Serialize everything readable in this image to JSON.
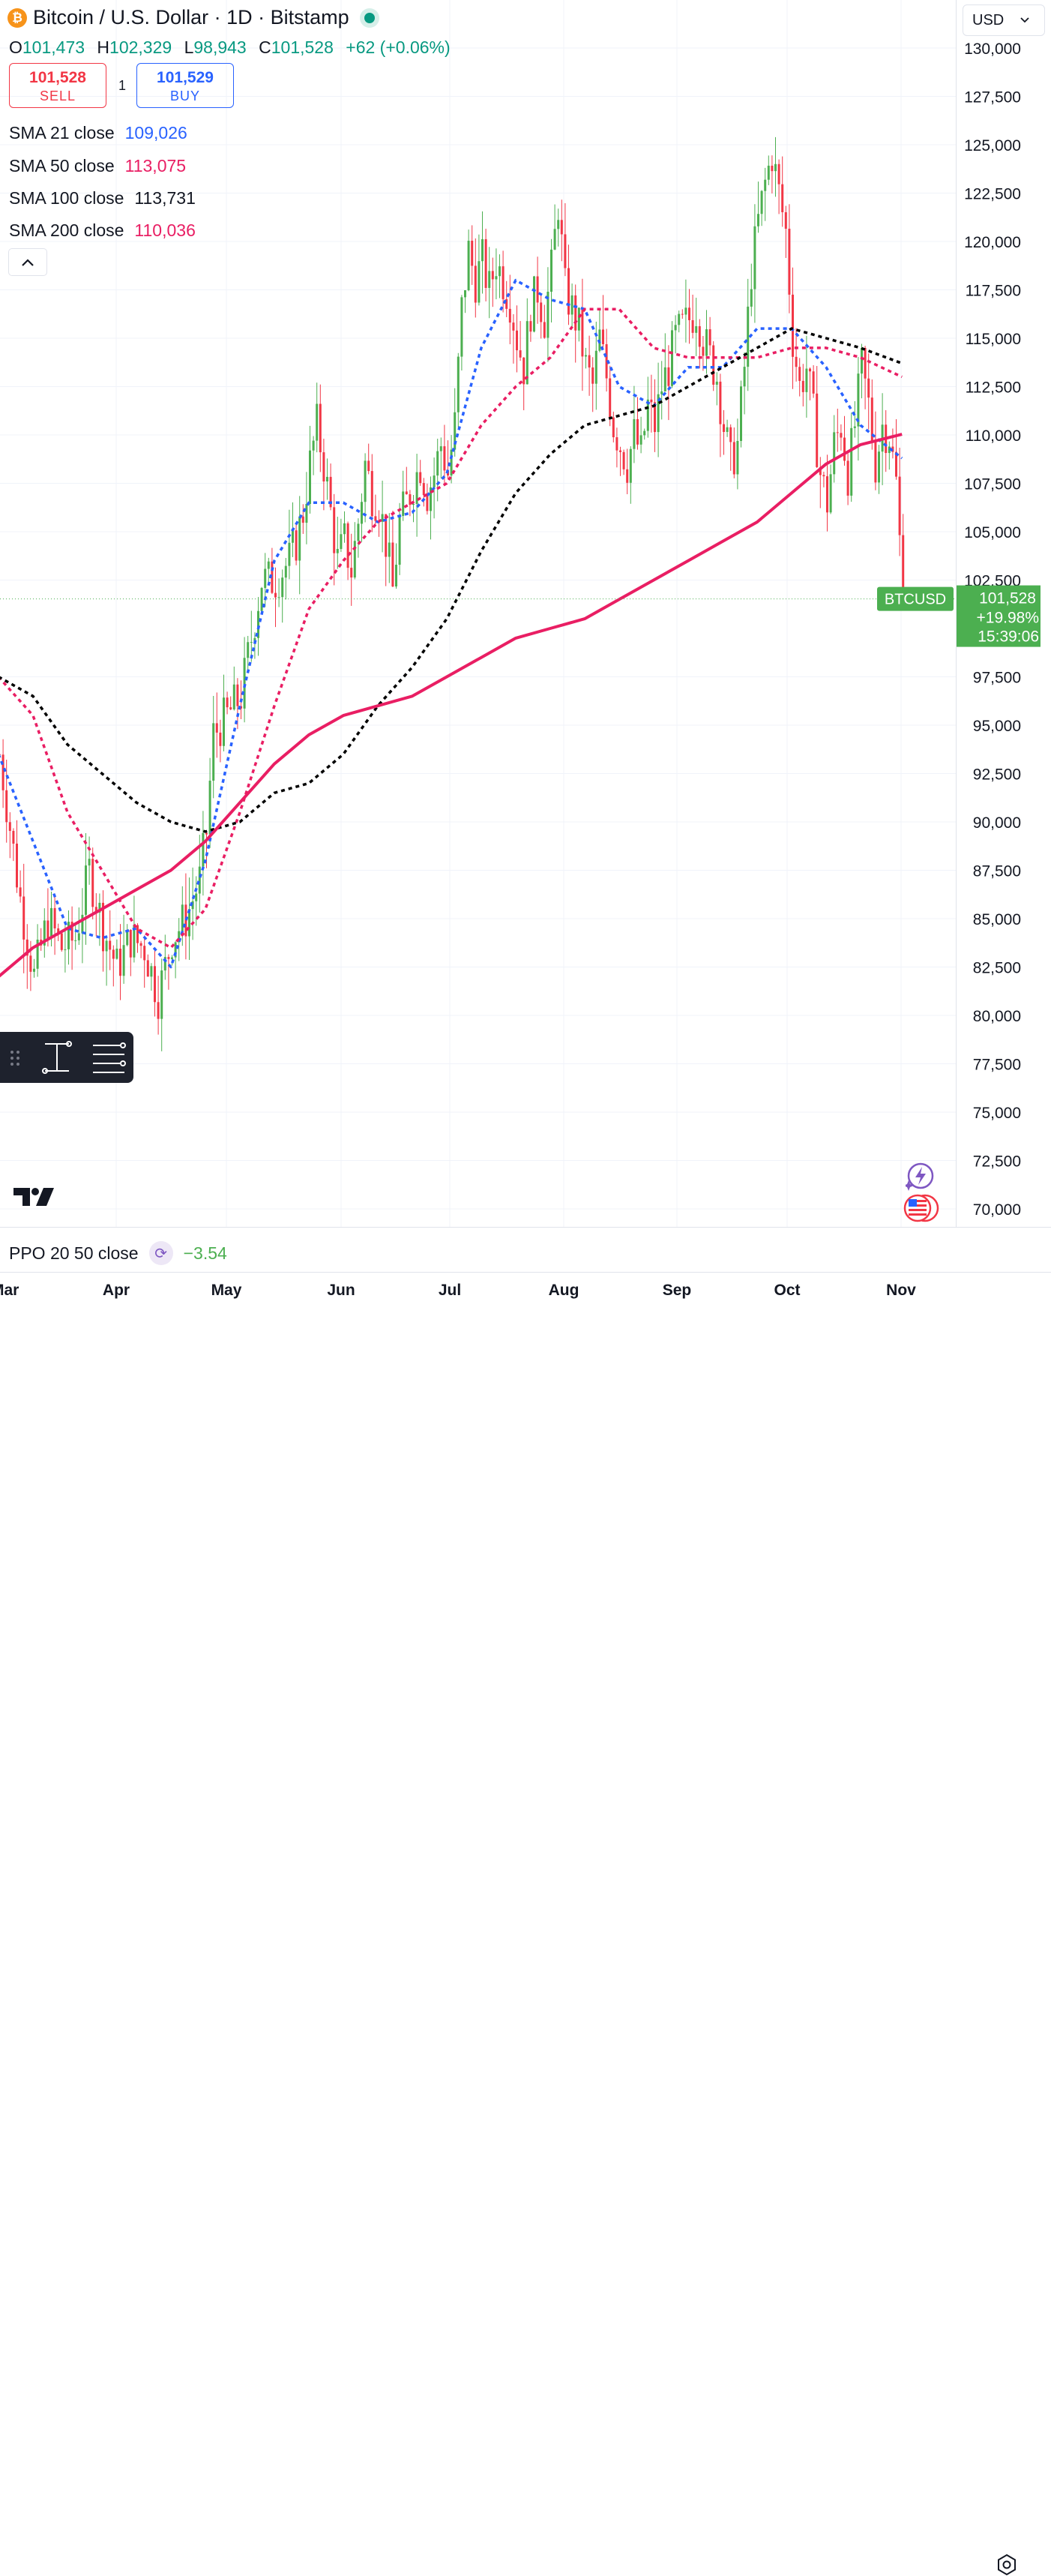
{
  "header": {
    "title": "Bitcoin / U.S. Dollar · 1D · Bitstamp",
    "ohlc": {
      "o_label": "O",
      "o": "101,473",
      "h_label": "H",
      "h": "102,329",
      "l_label": "L",
      "l": "98,943",
      "c_label": "C",
      "c": "101,528",
      "change": "+62 (+0.06%)"
    },
    "logo_glyph": "₿"
  },
  "trade": {
    "sell_price": "101,528",
    "sell_label": "SELL",
    "spread": "1",
    "buy_price": "101,529",
    "buy_label": "BUY"
  },
  "indicators": [
    {
      "name": "SMA 21 close",
      "value": "109,026",
      "color": "#2962ff"
    },
    {
      "name": "SMA 50 close",
      "value": "113,075",
      "color": "#e91e63"
    },
    {
      "name": "SMA 100 close",
      "value": "113,731",
      "color": "#131722"
    },
    {
      "name": "SMA 200 close",
      "value": "110,036",
      "color": "#e91e63"
    }
  ],
  "currency": {
    "label": "USD"
  },
  "price_axis": {
    "ticks": [
      "130,000",
      "127,500",
      "125,000",
      "122,500",
      "120,000",
      "117,500",
      "115,000",
      "112,500",
      "110,000",
      "107,500",
      "105,000",
      "102,500",
      "97,500",
      "95,000",
      "92,500",
      "90,000",
      "87,500",
      "85,000",
      "82,500",
      "80,000",
      "77,500",
      "75,000",
      "72,500",
      "70,000"
    ]
  },
  "last_price": {
    "symbol": "BTCUSD",
    "price": "101,528",
    "change_pct": "+19.98%",
    "countdown": "15:39:06",
    "color": "#4caf50"
  },
  "time_axis": {
    "labels": [
      "Mar",
      "Apr",
      "May",
      "Jun",
      "Jul",
      "Aug",
      "Sep",
      "Oct",
      "Nov"
    ]
  },
  "ppo": {
    "name": "PPO 20 50 close",
    "value": "−3.54"
  },
  "chart_data": {
    "type": "candlestick",
    "ylim": [
      68500,
      131500
    ],
    "up_color": "#4caf50",
    "down_color": "#f23645",
    "close_path": [
      [
        0,
        93500
      ],
      [
        6,
        86000
      ],
      [
        10,
        82000
      ],
      [
        14,
        85000
      ],
      [
        18,
        83500
      ],
      [
        22,
        84000
      ],
      [
        26,
        87500
      ],
      [
        30,
        84500
      ],
      [
        34,
        82500
      ],
      [
        38,
        84000
      ],
      [
        42,
        83500
      ],
      [
        46,
        81000
      ],
      [
        50,
        84000
      ],
      [
        54,
        85000
      ],
      [
        58,
        87000
      ],
      [
        60,
        89500
      ],
      [
        62,
        94500
      ],
      [
        66,
        95500
      ],
      [
        70,
        96500
      ],
      [
        74,
        100500
      ],
      [
        76,
        102500
      ],
      [
        80,
        102500
      ],
      [
        84,
        103500
      ],
      [
        86,
        104500
      ],
      [
        88,
        106000
      ],
      [
        90,
        108500
      ],
      [
        92,
        110500
      ],
      [
        94,
        108500
      ],
      [
        96,
        106000
      ],
      [
        98,
        103500
      ],
      [
        100,
        104500
      ],
      [
        102,
        103000
      ],
      [
        104,
        105500
      ],
      [
        106,
        108500
      ],
      [
        108,
        107000
      ],
      [
        110,
        106500
      ],
      [
        112,
        104500
      ],
      [
        114,
        102000
      ],
      [
        116,
        105500
      ],
      [
        118,
        106500
      ],
      [
        120,
        107500
      ],
      [
        122,
        108500
      ],
      [
        124,
        107000
      ],
      [
        126,
        108000
      ],
      [
        128,
        109500
      ],
      [
        130,
        108000
      ],
      [
        132,
        110500
      ],
      [
        134,
        116500
      ],
      [
        136,
        119500
      ],
      [
        138,
        118000
      ],
      [
        140,
        119000
      ],
      [
        142,
        117500
      ],
      [
        144,
        119000
      ],
      [
        146,
        118000
      ],
      [
        148,
        117000
      ],
      [
        150,
        115000
      ],
      [
        152,
        113500
      ],
      [
        154,
        116500
      ],
      [
        156,
        117500
      ],
      [
        158,
        116000
      ],
      [
        160,
        118500
      ],
      [
        162,
        122000
      ],
      [
        164,
        117500
      ],
      [
        166,
        116500
      ],
      [
        168,
        115500
      ],
      [
        170,
        113500
      ],
      [
        172,
        112500
      ],
      [
        174,
        115000
      ],
      [
        176,
        113000
      ],
      [
        178,
        110500
      ],
      [
        180,
        109500
      ],
      [
        182,
        108500
      ],
      [
        184,
        110000
      ],
      [
        186,
        109000
      ],
      [
        188,
        111500
      ],
      [
        190,
        110500
      ],
      [
        192,
        112500
      ],
      [
        194,
        113500
      ],
      [
        196,
        115000
      ],
      [
        198,
        115500
      ],
      [
        200,
        116000
      ],
      [
        202,
        116500
      ],
      [
        204,
        115000
      ],
      [
        206,
        114000
      ],
      [
        208,
        113000
      ],
      [
        210,
        110500
      ],
      [
        212,
        108500
      ],
      [
        214,
        109500
      ],
      [
        216,
        113500
      ],
      [
        218,
        118500
      ],
      [
        220,
        121000
      ],
      [
        222,
        123000
      ],
      [
        224,
        124500
      ],
      [
        226,
        122500
      ],
      [
        228,
        120500
      ],
      [
        230,
        115000
      ],
      [
        232,
        112500
      ],
      [
        234,
        113500
      ],
      [
        236,
        111000
      ],
      [
        238,
        108000
      ],
      [
        240,
        106500
      ],
      [
        242,
        109500
      ],
      [
        244,
        110500
      ],
      [
        246,
        108000
      ],
      [
        248,
        110500
      ],
      [
        250,
        113500
      ],
      [
        252,
        111500
      ],
      [
        254,
        108500
      ],
      [
        256,
        110500
      ],
      [
        258,
        110000
      ],
      [
        260,
        107500
      ],
      [
        262,
        101528
      ]
    ],
    "sma_21": [
      [
        0,
        93500
      ],
      [
        10,
        89000
      ],
      [
        20,
        84500
      ],
      [
        30,
        84000
      ],
      [
        40,
        84500
      ],
      [
        50,
        82500
      ],
      [
        60,
        88000
      ],
      [
        70,
        96000
      ],
      [
        80,
        103500
      ],
      [
        90,
        106500
      ],
      [
        100,
        106500
      ],
      [
        110,
        105500
      ],
      [
        120,
        106000
      ],
      [
        130,
        108000
      ],
      [
        140,
        114500
      ],
      [
        150,
        118000
      ],
      [
        160,
        117000
      ],
      [
        170,
        116500
      ],
      [
        180,
        112500
      ],
      [
        190,
        111500
      ],
      [
        200,
        113500
      ],
      [
        210,
        113500
      ],
      [
        220,
        115500
      ],
      [
        230,
        115500
      ],
      [
        240,
        113500
      ],
      [
        250,
        110500
      ],
      [
        262,
        108800
      ]
    ],
    "sma_50": [
      [
        0,
        97500
      ],
      [
        10,
        95500
      ],
      [
        20,
        90500
      ],
      [
        30,
        87500
      ],
      [
        40,
        84500
      ],
      [
        50,
        83500
      ],
      [
        60,
        85500
      ],
      [
        70,
        90500
      ],
      [
        80,
        96000
      ],
      [
        90,
        101000
      ],
      [
        100,
        103500
      ],
      [
        110,
        105500
      ],
      [
        120,
        106500
      ],
      [
        130,
        107500
      ],
      [
        140,
        110500
      ],
      [
        150,
        112500
      ],
      [
        160,
        114000
      ],
      [
        170,
        116500
      ],
      [
        180,
        116500
      ],
      [
        190,
        114500
      ],
      [
        200,
        114000
      ],
      [
        210,
        114000
      ],
      [
        220,
        114000
      ],
      [
        230,
        114500
      ],
      [
        240,
        114500
      ],
      [
        250,
        114000
      ],
      [
        262,
        113000
      ]
    ],
    "sma_100": [
      [
        0,
        97500
      ],
      [
        10,
        96500
      ],
      [
        20,
        94000
      ],
      [
        30,
        92500
      ],
      [
        40,
        91000
      ],
      [
        50,
        90000
      ],
      [
        60,
        89500
      ],
      [
        70,
        90000
      ],
      [
        80,
        91500
      ],
      [
        90,
        92000
      ],
      [
        100,
        93500
      ],
      [
        110,
        96000
      ],
      [
        120,
        98000
      ],
      [
        130,
        100500
      ],
      [
        140,
        104000
      ],
      [
        150,
        107000
      ],
      [
        160,
        109000
      ],
      [
        170,
        110500
      ],
      [
        180,
        111000
      ],
      [
        190,
        111500
      ],
      [
        200,
        112500
      ],
      [
        210,
        113500
      ],
      [
        220,
        114500
      ],
      [
        230,
        115500
      ],
      [
        240,
        115000
      ],
      [
        250,
        114500
      ],
      [
        262,
        113700
      ]
    ],
    "sma_200": [
      [
        0,
        82000
      ],
      [
        10,
        83500
      ],
      [
        20,
        84500
      ],
      [
        30,
        85500
      ],
      [
        40,
        86500
      ],
      [
        50,
        87500
      ],
      [
        60,
        89000
      ],
      [
        70,
        91000
      ],
      [
        80,
        93000
      ],
      [
        90,
        94500
      ],
      [
        100,
        95500
      ],
      [
        110,
        96000
      ],
      [
        120,
        96500
      ],
      [
        130,
        97500
      ],
      [
        140,
        98500
      ],
      [
        150,
        99500
      ],
      [
        160,
        100000
      ],
      [
        170,
        100500
      ],
      [
        180,
        101500
      ],
      [
        190,
        102500
      ],
      [
        200,
        103500
      ],
      [
        210,
        104500
      ],
      [
        220,
        105500
      ],
      [
        230,
        107000
      ],
      [
        240,
        108500
      ],
      [
        250,
        109500
      ],
      [
        262,
        110036
      ]
    ]
  }
}
